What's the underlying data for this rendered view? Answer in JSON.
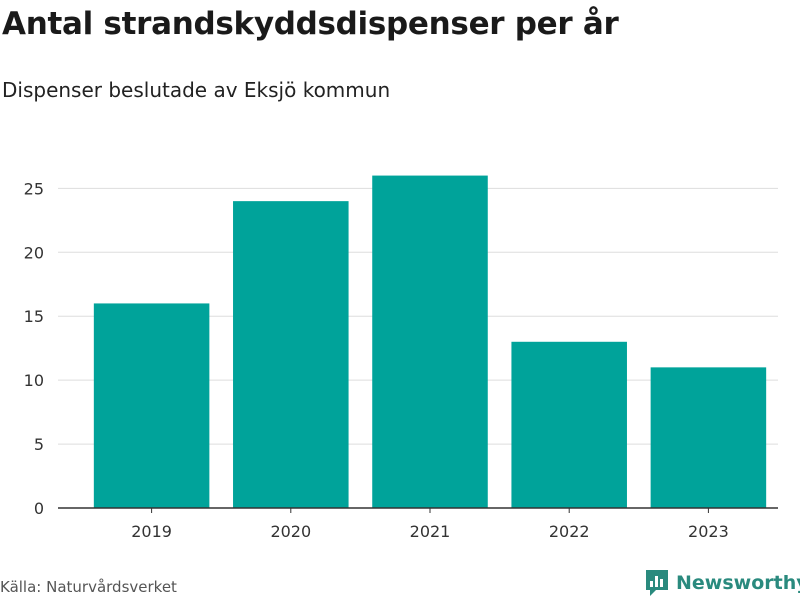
{
  "title": "Antal strandskyddsdispenser per år",
  "subtitle": "Dispenser beslutade av Eksjö kommun",
  "source": "Källa: Naturvårdsverket",
  "brand": {
    "name": "Newsworthy",
    "icon": "newsworthy-logo-icon",
    "color": "#2a8a7e"
  },
  "chart_data": {
    "type": "bar",
    "categories": [
      "2019",
      "2020",
      "2021",
      "2022",
      "2023"
    ],
    "values": [
      16,
      24,
      26,
      13,
      11
    ],
    "ylim": [
      0,
      28
    ],
    "yticks": [
      0,
      5,
      10,
      15,
      20,
      25
    ],
    "grid": true,
    "bar_color": "#00a39a",
    "gridline_color": "#dddddd"
  }
}
